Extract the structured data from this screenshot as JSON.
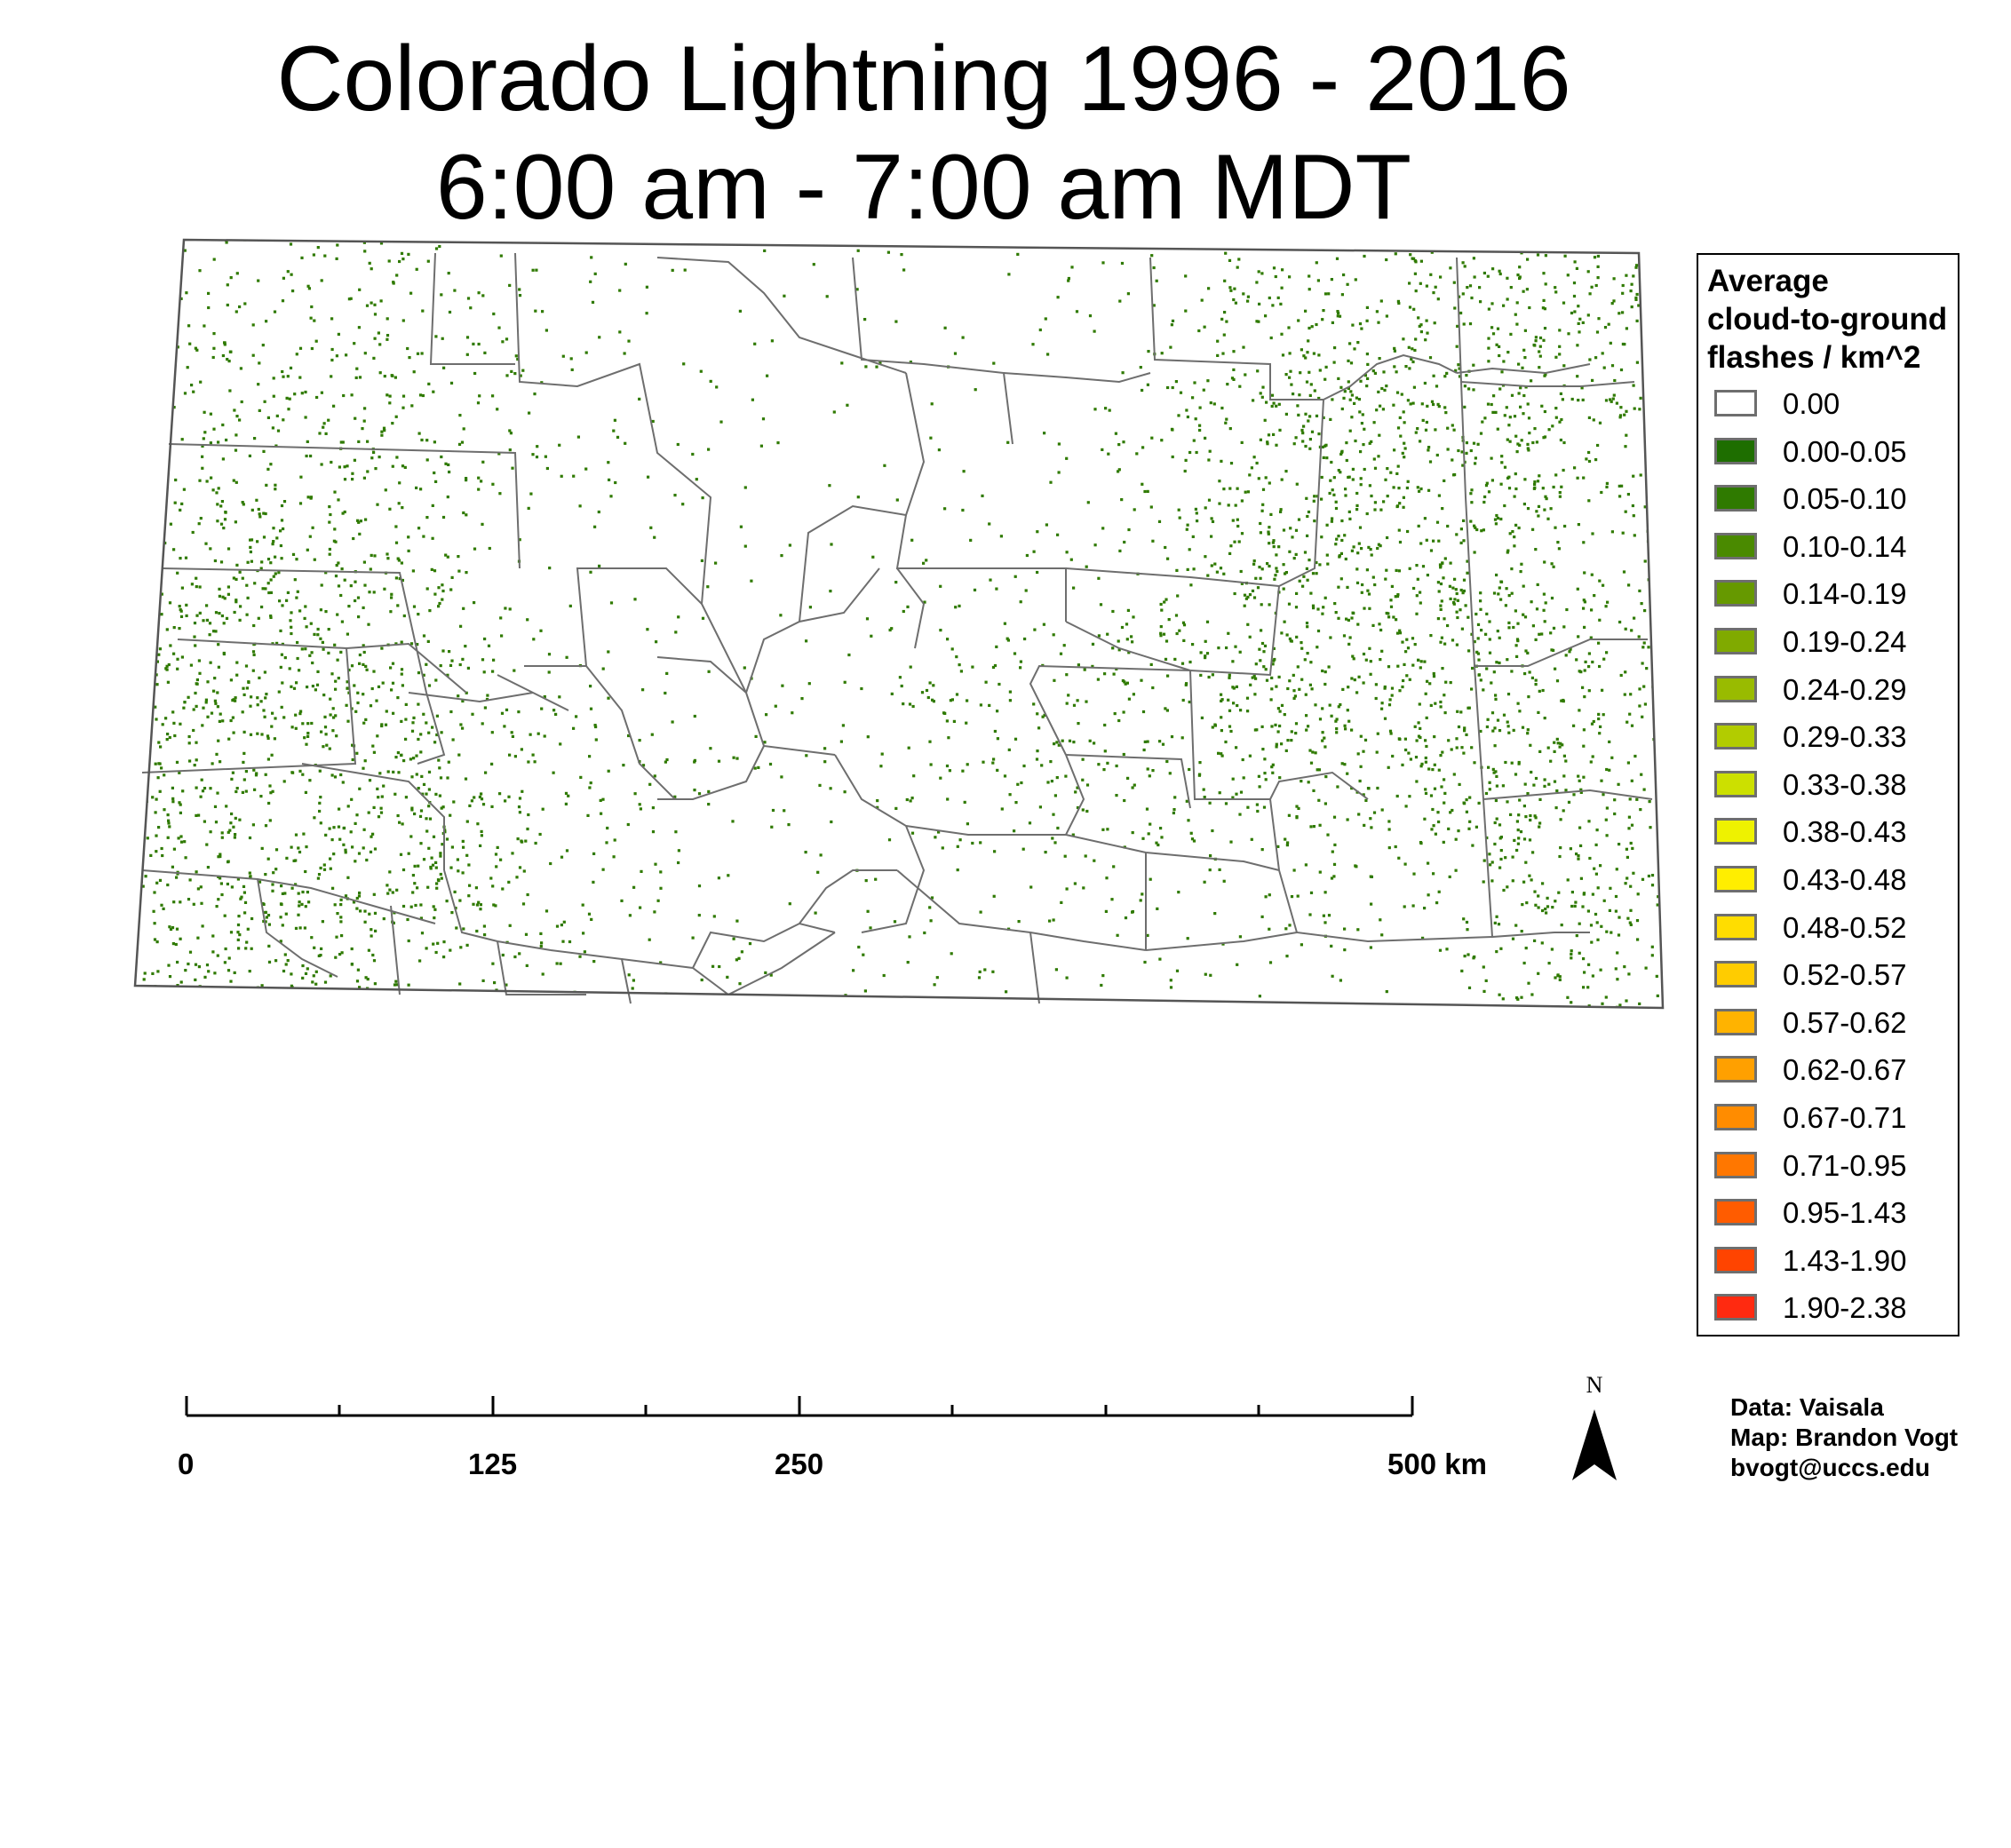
{
  "title": {
    "line1": "Colorado Lightning 1996 - 2016",
    "line2": "6:00 am - 7:00 am MDT"
  },
  "legend": {
    "title_lines": [
      "Average",
      "cloud-to-ground",
      "flashes / km^2"
    ],
    "items": [
      {
        "label": "0.00",
        "color": "#ffffff"
      },
      {
        "label": "0.00-0.05",
        "color": "#1e6e00"
      },
      {
        "label": "0.05-0.10",
        "color": "#2f7a00"
      },
      {
        "label": "0.10-0.14",
        "color": "#4a8a00"
      },
      {
        "label": "0.14-0.19",
        "color": "#669900"
      },
      {
        "label": "0.19-0.24",
        "color": "#80aa00"
      },
      {
        "label": "0.24-0.29",
        "color": "#99bb00"
      },
      {
        "label": "0.29-0.33",
        "color": "#b2cc00"
      },
      {
        "label": "0.33-0.38",
        "color": "#cce000"
      },
      {
        "label": "0.38-0.43",
        "color": "#eef200"
      },
      {
        "label": "0.43-0.48",
        "color": "#ffee00"
      },
      {
        "label": "0.48-0.52",
        "color": "#ffdd00"
      },
      {
        "label": "0.52-0.57",
        "color": "#ffcc00"
      },
      {
        "label": "0.57-0.62",
        "color": "#ffb300"
      },
      {
        "label": "0.62-0.67",
        "color": "#ffa000"
      },
      {
        "label": "0.67-0.71",
        "color": "#ff8c00"
      },
      {
        "label": "0.71-0.95",
        "color": "#ff7700"
      },
      {
        "label": "0.95-1.43",
        "color": "#ff5c00"
      },
      {
        "label": "1.43-1.90",
        "color": "#ff4400"
      },
      {
        "label": "1.90-2.38",
        "color": "#ff2a10"
      }
    ]
  },
  "scalebar": {
    "labels": [
      "0",
      "125",
      "250",
      "500 km"
    ]
  },
  "north_arrow": {
    "label": "N"
  },
  "credits": {
    "lines": [
      "Data: Vaisala",
      "Map: Brandon Vogt",
      "bvogt@uccs.edu"
    ]
  },
  "map": {
    "state": "Colorado",
    "flash_color": "#2f7a00"
  }
}
